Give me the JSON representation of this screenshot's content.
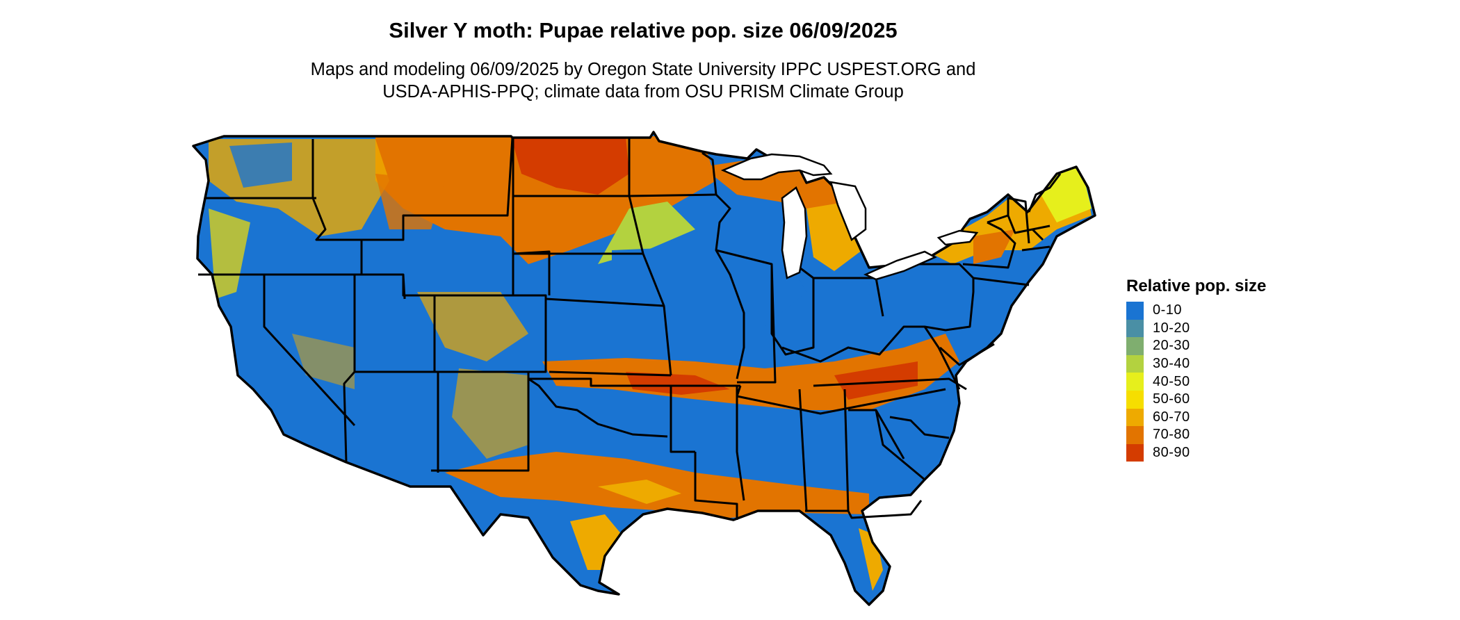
{
  "title": "Silver Y moth: Pupae relative pop. size 06/09/2025",
  "subtitle": {
    "line1": "Maps and modeling 06/09/2025 by Oregon State University IPPC USPEST.ORG and",
    "line2": "USDA-APHIS-PPQ; climate data from OSU PRISM Climate Group"
  },
  "legend": {
    "title": "Relative pop. size",
    "items": [
      {
        "label": "0-10",
        "color": "#1a74d2"
      },
      {
        "label": "10-20",
        "color": "#4a8fa5"
      },
      {
        "label": "20-30",
        "color": "#7fae6f"
      },
      {
        "label": "30-40",
        "color": "#b3d23f"
      },
      {
        "label": "40-50",
        "color": "#e6ef1c"
      },
      {
        "label": "50-60",
        "color": "#f6de00"
      },
      {
        "label": "60-70",
        "color": "#eeaa00"
      },
      {
        "label": "70-80",
        "color": "#e27400"
      },
      {
        "label": "80-90",
        "color": "#d43c00"
      }
    ]
  },
  "map_regions": [
    {
      "region": "Northern Plains (MT/ND/SD)",
      "class": "70-80",
      "color": "#e27400"
    },
    {
      "region": "Great Lakes & Upper Michigan",
      "class": "60-70",
      "color": "#eeaa00"
    },
    {
      "region": "Northeast / Maine",
      "class": "40-50",
      "color": "#e6ef1c"
    },
    {
      "region": "Corn Belt / Midwest",
      "class": "0-10",
      "color": "#1a74d2"
    },
    {
      "region": "Southern band (OK–NC)",
      "class": "70-80",
      "color": "#e27400"
    },
    {
      "region": "Gulf Coast",
      "class": "60-70",
      "color": "#eeaa00"
    },
    {
      "region": "Pacific Northwest mountains",
      "class": "50-60",
      "color": "#f6de00"
    },
    {
      "region": "Intermountain West / Southwest",
      "class": "0-10",
      "color": "#1a74d2"
    },
    {
      "region": "Florida",
      "class": "0-10",
      "color": "#1a74d2"
    }
  ]
}
